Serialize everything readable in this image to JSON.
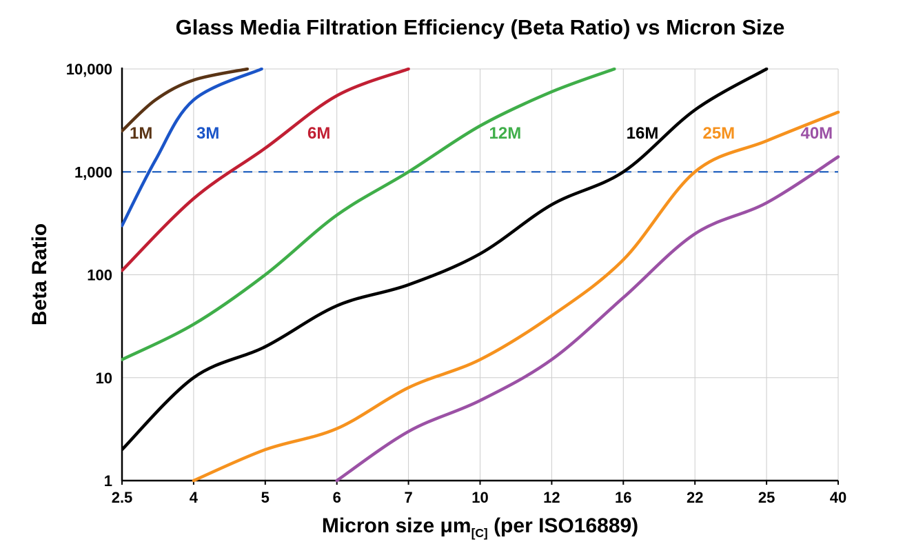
{
  "chart_data": {
    "type": "line",
    "title": "Glass Media Filtration Efficiency (Beta Ratio) vs Micron Size",
    "ylabel": "Beta Ratio",
    "xlabel_prefix": "Micron size μm",
    "xlabel_subscript": "[C]",
    "xlabel_suffix": " (per ISO16889)",
    "x_scale": "ordinal",
    "x_categories": [
      2.5,
      4,
      5,
      6,
      7,
      10,
      12,
      16,
      22,
      25,
      40
    ],
    "x_tick_labels": [
      "2.5",
      "4",
      "5",
      "6",
      "7",
      "10",
      "12",
      "16",
      "22",
      "25",
      "40"
    ],
    "y_scale": "log",
    "ylim": [
      1,
      10000
    ],
    "y_ticks": [
      1,
      10,
      100,
      1000,
      10000
    ],
    "y_tick_labels": [
      "1",
      "10",
      "100",
      "1,000",
      "10,000"
    ],
    "grid": true,
    "grid_color": "#cccccc",
    "axis_color": "#000000",
    "reference_line": {
      "value": 1000,
      "color": "#1f5fbf",
      "style": "dashed"
    },
    "series": [
      {
        "name": "1M",
        "color": "#5a3415",
        "label": {
          "micron": 2.9,
          "beta": 2100
        },
        "points": [
          [
            2.5,
            2500
          ],
          [
            3.2,
            5000
          ],
          [
            4,
            7800
          ],
          [
            4.75,
            10000
          ]
        ]
      },
      {
        "name": "3M",
        "color": "#1b55c8",
        "label": {
          "micron": 4.2,
          "beta": 2100
        },
        "points": [
          [
            2.5,
            300
          ],
          [
            3.2,
            1300
          ],
          [
            4,
            5000
          ],
          [
            4.95,
            10000
          ]
        ]
      },
      {
        "name": "6M",
        "color": "#c11f33",
        "label": {
          "micron": 5.75,
          "beta": 2100
        },
        "points": [
          [
            2.5,
            110
          ],
          [
            4,
            550
          ],
          [
            5,
            1700
          ],
          [
            6,
            5500
          ],
          [
            7,
            10000
          ]
        ]
      },
      {
        "name": "12M",
        "color": "#3fae49",
        "label": {
          "micron": 10.7,
          "beta": 2100
        },
        "points": [
          [
            2.5,
            15
          ],
          [
            4,
            33
          ],
          [
            5,
            100
          ],
          [
            6,
            380
          ],
          [
            7,
            1000
          ],
          [
            10,
            2800
          ],
          [
            12,
            6000
          ],
          [
            15.5,
            10000
          ]
        ]
      },
      {
        "name": "16M",
        "color": "#000000",
        "label": {
          "micron": 17.6,
          "beta": 2100
        },
        "points": [
          [
            2.5,
            2
          ],
          [
            4,
            10
          ],
          [
            5,
            20
          ],
          [
            6,
            50
          ],
          [
            7,
            80
          ],
          [
            10,
            160
          ],
          [
            12,
            480
          ],
          [
            16,
            1000
          ],
          [
            22,
            4000
          ],
          [
            25,
            10000
          ]
        ]
      },
      {
        "name": "25M",
        "color": "#f6921e",
        "label": {
          "micron": 23,
          "beta": 2100
        },
        "points": [
          [
            4,
            1
          ],
          [
            5,
            2
          ],
          [
            6,
            3.2
          ],
          [
            7,
            8
          ],
          [
            10,
            15
          ],
          [
            12,
            40
          ],
          [
            16,
            140
          ],
          [
            22,
            1000
          ],
          [
            25,
            2000
          ],
          [
            40,
            3800
          ]
        ]
      },
      {
        "name": "40M",
        "color": "#9b51a5",
        "label": {
          "micron": 35.5,
          "beta": 2100
        },
        "points": [
          [
            6,
            1
          ],
          [
            7,
            3
          ],
          [
            10,
            6
          ],
          [
            12,
            15
          ],
          [
            16,
            60
          ],
          [
            22,
            250
          ],
          [
            25,
            500
          ],
          [
            40,
            1400
          ]
        ]
      }
    ]
  }
}
